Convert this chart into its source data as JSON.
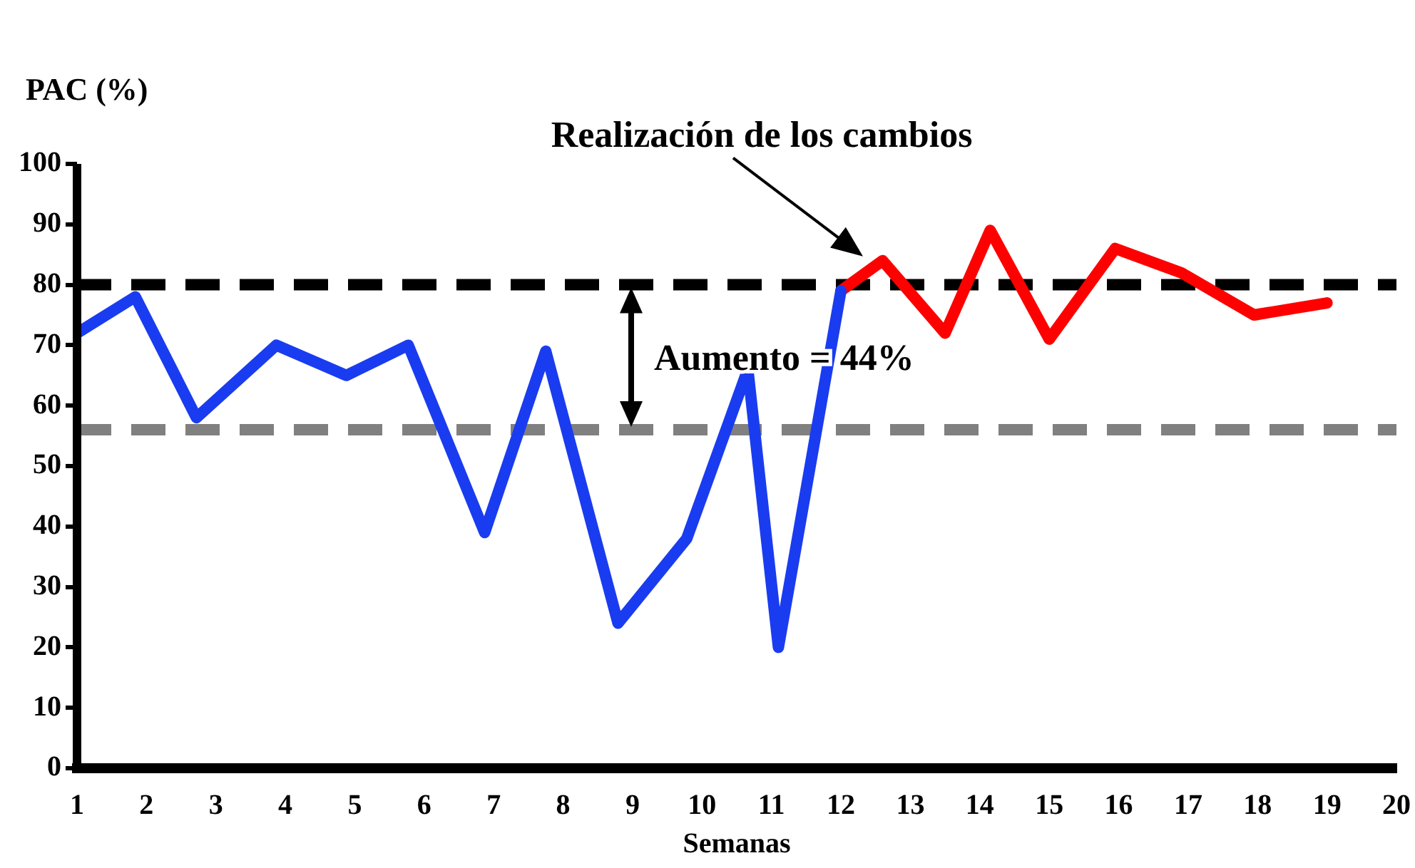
{
  "chart_data": {
    "type": "line",
    "xlabel": "Semanas",
    "ylabel": "PAC (%)",
    "xlim": [
      1,
      20
    ],
    "xticks": [
      1,
      2,
      3,
      4,
      5,
      6,
      7,
      8,
      9,
      10,
      11,
      12,
      13,
      14,
      15,
      16,
      17,
      18,
      19,
      20
    ],
    "ylim": [
      0,
      100
    ],
    "yticks": [
      0,
      10,
      20,
      30,
      40,
      50,
      60,
      70,
      80,
      90,
      100
    ],
    "grid": false,
    "legend": false,
    "marker": "none",
    "line_style": "solid",
    "series": [
      {
        "color": "#1a3cf0",
        "x": [
          1,
          1.84,
          2.72,
          3.87,
          4.88,
          5.77,
          6.87,
          7.75,
          8.79,
          9.78,
          10.66,
          11.1,
          12
        ],
        "values": [
          72,
          78,
          58,
          70,
          65,
          70,
          39,
          69,
          24,
          38,
          66,
          20,
          79
        ]
      },
      {
        "color": "#ff0000",
        "x": [
          12,
          12.6,
          13.5,
          14.15,
          15,
          15.95,
          16.9,
          17.95,
          19
        ],
        "values": [
          79,
          84,
          72,
          89,
          71,
          86,
          82,
          75,
          77
        ]
      }
    ],
    "ref_lines": [
      {
        "axis": "y",
        "value": 80,
        "color": "#000000",
        "line_style": "dashed"
      },
      {
        "axis": "y",
        "value": 56,
        "color": "#808080",
        "line_style": "dashed"
      }
    ],
    "annotations": [
      {
        "text": "Realización de los cambios",
        "x": 12.4,
        "y": 84
      },
      "Aumento = 44%"
    ]
  }
}
